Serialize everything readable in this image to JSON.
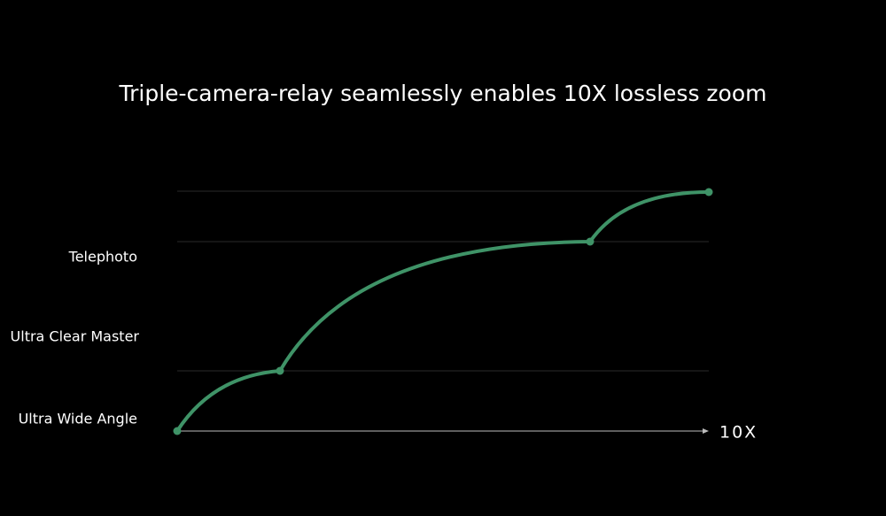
{
  "title": "Triple-camera-relay seamlessly enables 10X lossless zoom",
  "labels": [
    "Telephoto",
    "Ultra Clear Master",
    "Ultra Wide Angle"
  ],
  "axis_label": "10X"
}
